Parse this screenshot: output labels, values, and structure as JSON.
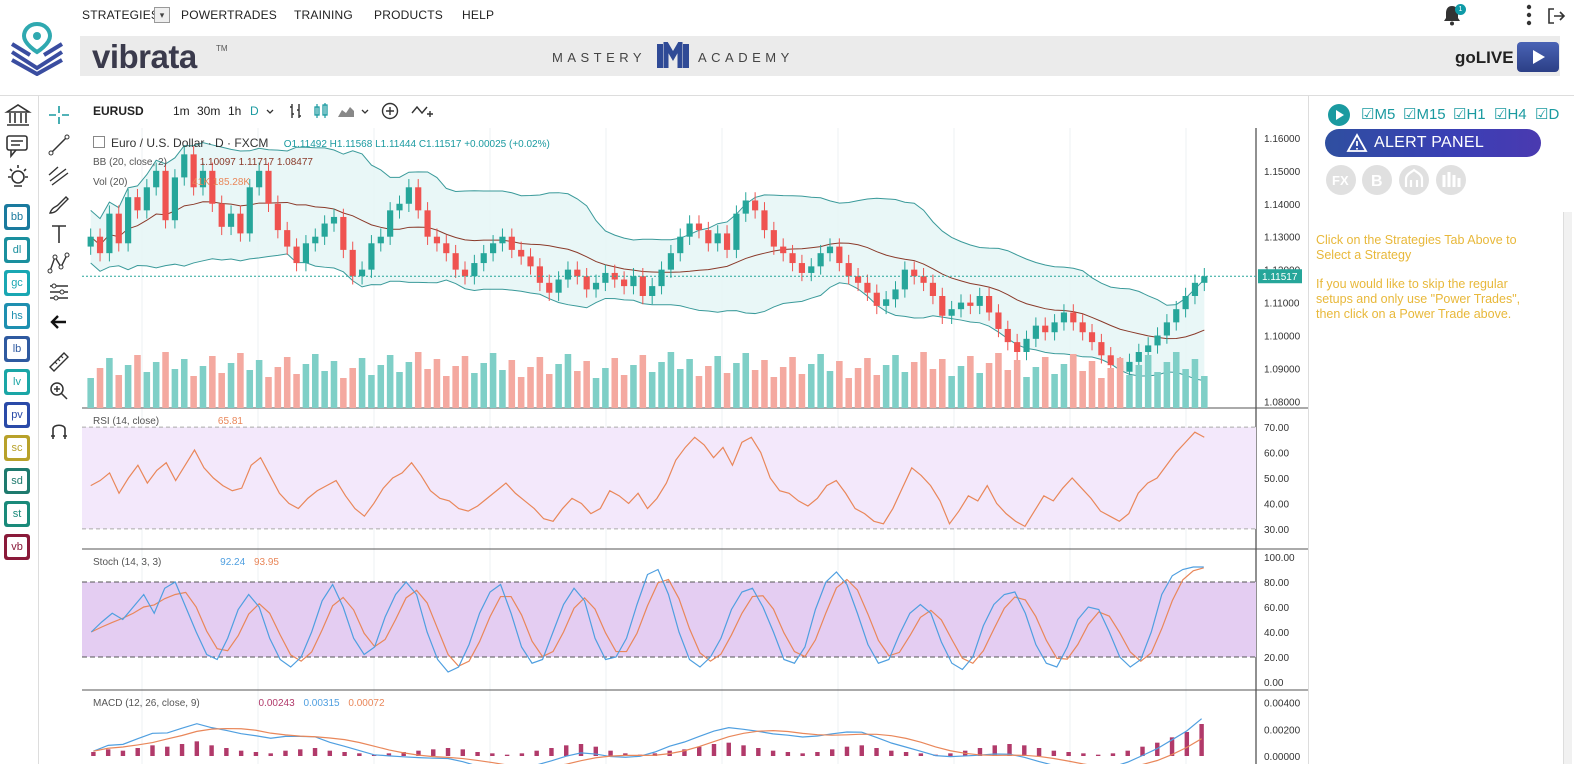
{
  "nav": {
    "strategies": "STRATEGIES",
    "dropdown": "▾",
    "powertrades": "POWERTRADES",
    "training": "TRAINING",
    "products": "PRODUCTS",
    "help": "HELP",
    "bell_badge": "1"
  },
  "header": {
    "brand": "vibrata",
    "brand_tm": "TM",
    "mastery_left": "MASTERY",
    "mastery_right": "ACADEMY",
    "golive": "goLIVE"
  },
  "strategies": [
    {
      "label": "bb",
      "color": "#1a7a9e"
    },
    {
      "label": "dl",
      "color": "#1a8f9e"
    },
    {
      "label": "gc",
      "color": "#19a7b3"
    },
    {
      "label": "hs",
      "color": "#1e8fb0"
    },
    {
      "label": "lb",
      "color": "#2f5aa0"
    },
    {
      "label": "lv",
      "color": "#1aa6a6"
    },
    {
      "label": "pv",
      "color": "#2a4aa8"
    },
    {
      "label": "sc",
      "color": "#b8a12a"
    },
    {
      "label": "sd",
      "color": "#1e7a6e"
    },
    {
      "label": "st",
      "color": "#1a8a7a"
    },
    {
      "label": "vb",
      "color": "#8a1a3a"
    }
  ],
  "toolbar": {
    "symbol": "EURUSD",
    "timeframes": [
      "1m",
      "30m",
      "1h",
      "D"
    ]
  },
  "legend": {
    "main_title": "Euro / U.S. Dollar · D · FXCM",
    "ohlc": "O1.11492  H1.11568  L1.11444  C1.11517  +0.00025 (+0.02%)",
    "bb_label": "BB (20, close, 2)",
    "bb_values": "1.10097  1.11717  1.08477",
    "vol_label": "Vol (20)",
    "vol_values": "41K  185.28K",
    "rsi_label": "RSI (14, close)",
    "rsi_value": "65.81",
    "stoch_label": "Stoch (14, 3, 3)",
    "stoch_k": "92.24",
    "stoch_d": "93.95",
    "macd_label": "MACD (12, 26, close, 9)",
    "macd_hist": "0.00243",
    "macd_macd": "0.00315",
    "macd_signal": "0.00072"
  },
  "price_axis": [
    "1.16000",
    "1.15000",
    "1.14000",
    "1.13000",
    "1.12000",
    "1.11000",
    "1.10000",
    "1.09000",
    "1.08000"
  ],
  "current_price": "1.11517",
  "rsi_axis": [
    "70.00",
    "60.00",
    "50.00",
    "40.00",
    "30.00"
  ],
  "stoch_axis": [
    "100.00",
    "80.00",
    "60.00",
    "40.00",
    "20.00",
    "0.00"
  ],
  "macd_axis": [
    "0.00400",
    "0.00200",
    "0.00000"
  ],
  "right_panel": {
    "timeframes": [
      "M5",
      "M15",
      "H1",
      "H4",
      "D"
    ],
    "alert_label": "ALERT PANEL",
    "message1": "Click on the Strategies Tab Above to Select a Strategy",
    "message2": "If you would like to skip the regular setups and only use \"Power Trades\", then click on a Power Trade above."
  },
  "colors": {
    "up": "#26a69a",
    "down": "#ef5350",
    "bb": "#3a9a9a",
    "rsi": "#e9875a",
    "stoch_k": "#4f9fe0",
    "stoch_d": "#e9875a",
    "accent": "#1a9aa0",
    "message": "#e8b83a"
  },
  "chart_data": {
    "type": "candlestick",
    "symbol": "EURUSD",
    "title": "Euro / U.S. Dollar · D · FXCM",
    "price_range": [
      1.078,
      1.163
    ],
    "close": [
      1.13,
      1.125,
      1.137,
      1.128,
      1.142,
      1.138,
      1.145,
      1.15,
      1.135,
      1.148,
      1.155,
      1.145,
      1.15,
      1.14,
      1.133,
      1.137,
      1.131,
      1.145,
      1.15,
      1.14,
      1.132,
      1.127,
      1.122,
      1.128,
      1.13,
      1.134,
      1.136,
      1.126,
      1.118,
      1.12,
      1.128,
      1.13,
      1.138,
      1.14,
      1.145,
      1.138,
      1.13,
      1.128,
      1.125,
      1.12,
      1.118,
      1.122,
      1.125,
      1.128,
      1.13,
      1.126,
      1.124,
      1.121,
      1.116,
      1.113,
      1.117,
      1.12,
      1.118,
      1.114,
      1.116,
      1.119,
      1.117,
      1.115,
      1.118,
      1.112,
      1.115,
      1.12,
      1.125,
      1.13,
      1.134,
      1.132,
      1.128,
      1.131,
      1.126,
      1.137,
      1.141,
      1.138,
      1.132,
      1.127,
      1.125,
      1.122,
      1.119,
      1.121,
      1.125,
      1.127,
      1.122,
      1.118,
      1.116,
      1.113,
      1.109,
      1.111,
      1.114,
      1.12,
      1.118,
      1.116,
      1.112,
      1.106,
      1.108,
      1.11,
      1.109,
      1.112,
      1.107,
      1.102,
      1.098,
      1.095,
      1.099,
      1.103,
      1.101,
      1.104,
      1.107,
      1.104,
      1.101,
      1.098,
      1.094,
      1.091,
      1.089,
      1.092,
      1.095,
      1.097,
      1.1,
      1.104,
      1.108,
      1.112,
      1.116,
      1.118
    ],
    "rsi": {
      "range": [
        28,
        72
      ],
      "values": [
        47,
        49,
        52,
        44,
        50,
        55,
        48,
        53,
        56,
        49,
        55,
        61,
        54,
        50,
        47,
        45,
        46,
        55,
        58,
        51,
        44,
        40,
        38,
        42,
        45,
        47,
        49,
        43,
        38,
        35,
        40,
        46,
        50,
        52,
        56,
        51,
        45,
        42,
        41,
        38,
        37,
        39,
        42,
        45,
        48,
        44,
        41,
        38,
        34,
        33,
        38,
        42,
        40,
        36,
        38,
        45,
        43,
        40,
        44,
        38,
        42,
        48,
        57,
        62,
        66,
        63,
        58,
        62,
        55,
        64,
        66,
        60,
        50,
        45,
        44,
        41,
        39,
        42,
        47,
        49,
        44,
        38,
        36,
        33,
        32,
        38,
        46,
        54,
        51,
        47,
        41,
        32,
        37,
        43,
        41,
        47,
        40,
        36,
        33,
        31,
        37,
        43,
        41,
        46,
        50,
        46,
        42,
        37,
        35,
        33,
        36,
        44,
        48,
        50,
        55,
        60,
        64,
        68,
        66
      ]
    },
    "stoch": {
      "range": [
        0,
        100
      ],
      "k_values": [
        40,
        48,
        55,
        50,
        60,
        70,
        55,
        75,
        80,
        60,
        40,
        22,
        18,
        35,
        58,
        70,
        60,
        35,
        18,
        12,
        20,
        40,
        65,
        78,
        60,
        35,
        22,
        28,
        52,
        70,
        80,
        70,
        40,
        18,
        8,
        12,
        30,
        55,
        72,
        78,
        55,
        28,
        15,
        18,
        40,
        62,
        75,
        65,
        35,
        18,
        20,
        35,
        62,
        86,
        90,
        70,
        40,
        18,
        12,
        20,
        35,
        58,
        72,
        75,
        60,
        40,
        18,
        15,
        28,
        58,
        80,
        88,
        78,
        55,
        30,
        15,
        18,
        38,
        55,
        62,
        55,
        32,
        15,
        10,
        20,
        45,
        62,
        70,
        72,
        55,
        30,
        15,
        12,
        28,
        50,
        60,
        58,
        40,
        20,
        12,
        18,
        40,
        70,
        85,
        90,
        92,
        92
      ]
    },
    "macd": {
      "range": [
        -0.0006,
        0.0045
      ],
      "hist": [
        0.0003,
        0.0005,
        0.0004,
        0.0006,
        0.0008,
        0.0007,
        0.0009,
        0.0011,
        0.0008,
        0.0006,
        0.0004,
        0.0003,
        0.0002,
        0.0004,
        0.0005,
        0.0006,
        0.0004,
        0.0003,
        0.0002,
        0.0001,
        0.0002,
        0.0003,
        0.0004,
        0.0005,
        0.0006,
        0.0005,
        0.0003,
        0.0002,
        0.0001,
        0.0002,
        0.0004,
        0.0006,
        0.0008,
        0.0009,
        0.0007,
        0.0004,
        0.0002,
        0.0001,
        0.0002,
        0.0004,
        0.0005,
        0.0007,
        0.0009,
        0.001,
        0.0008,
        0.0006,
        0.0004,
        0.0003,
        0.0002,
        0.0003,
        0.0005,
        0.0007,
        0.0008,
        0.0006,
        0.0004,
        0.0003,
        0.0002,
        0.0001,
        0.0002,
        0.0004,
        0.0006,
        0.0008,
        0.0009,
        0.0008,
        0.0006,
        0.0004,
        0.0003,
        0.0002,
        0.0001,
        0.0002,
        0.0004,
        0.0007,
        0.001,
        0.0014,
        0.0018,
        0.0024
      ]
    }
  }
}
